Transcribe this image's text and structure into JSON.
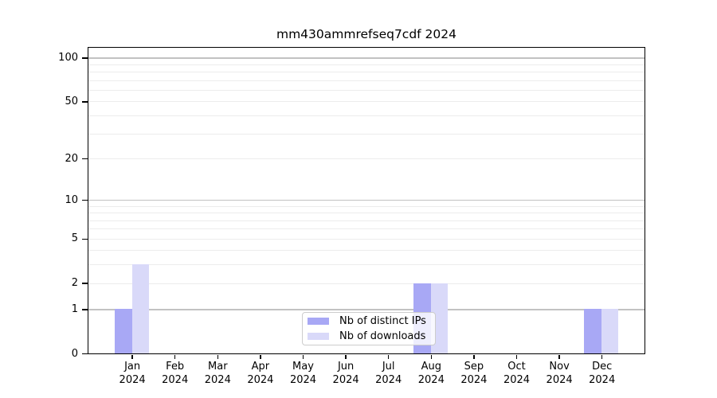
{
  "title": "mm430ammrefseq7cdf 2024",
  "chart_data": {
    "type": "bar",
    "title": "mm430ammrefseq7cdf 2024",
    "categories": [
      {
        "month": "Jan",
        "year": "2024"
      },
      {
        "month": "Feb",
        "year": "2024"
      },
      {
        "month": "Mar",
        "year": "2024"
      },
      {
        "month": "Apr",
        "year": "2024"
      },
      {
        "month": "May",
        "year": "2024"
      },
      {
        "month": "Jun",
        "year": "2024"
      },
      {
        "month": "Jul",
        "year": "2024"
      },
      {
        "month": "Aug",
        "year": "2024"
      },
      {
        "month": "Sep",
        "year": "2024"
      },
      {
        "month": "Oct",
        "year": "2024"
      },
      {
        "month": "Nov",
        "year": "2024"
      },
      {
        "month": "Dec",
        "year": "2024"
      }
    ],
    "series": [
      {
        "name": "Nb of distinct IPs",
        "color": "#a8a8f5",
        "values": [
          1,
          0,
          0,
          0,
          0,
          0,
          0,
          2,
          0,
          0,
          0,
          1
        ]
      },
      {
        "name": "Nb of downloads",
        "color": "#d9d9f9",
        "values": [
          3,
          0,
          0,
          0,
          0,
          0,
          0,
          2,
          0,
          0,
          0,
          1
        ]
      }
    ],
    "xlabel": "",
    "ylabel": "",
    "y_axis": {
      "scale": "log10(value+1)",
      "ticks": [
        0,
        1,
        2,
        5,
        10,
        20,
        50,
        100
      ],
      "range_top_value": 117
    },
    "grid": {
      "enabled": true,
      "major_lines_at": [
        1,
        10,
        100
      ],
      "minor_lines_at": [
        2,
        3,
        4,
        5,
        6,
        7,
        8,
        9,
        20,
        30,
        40,
        50,
        60,
        70,
        80,
        90
      ],
      "minor_color": "#ececec",
      "major_color": "#c2c2c2"
    },
    "legend_position": "inside-bottom-center",
    "background_color": "#ffffff",
    "axis_color": "#000000"
  }
}
